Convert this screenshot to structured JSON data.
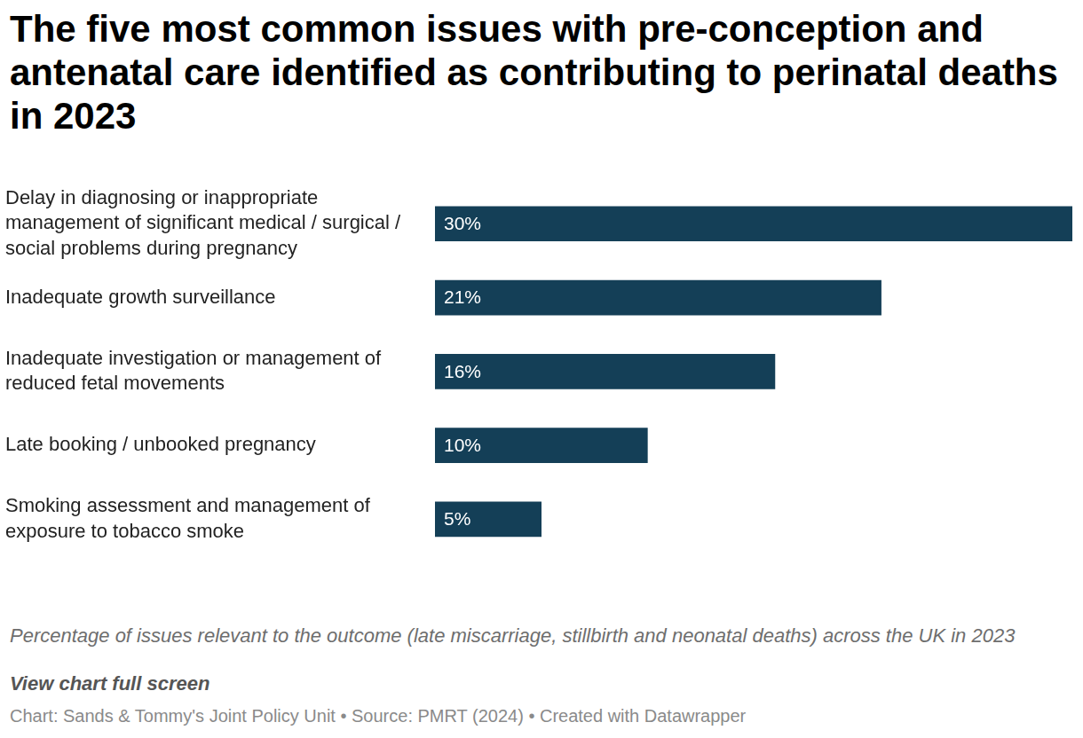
{
  "chart_data": {
    "type": "bar",
    "orientation": "horizontal",
    "title": "The five most common issues with pre-conception and antenatal care identified as contributing to perinatal deaths in 2023",
    "categories": [
      "Delay in diagnosing or inappropriate management of significant medical / surgical / social problems during pregnancy",
      "Inadequate growth surveillance",
      "Inadequate investigation or management of reduced fetal movements",
      "Late booking / unbooked pregnancy",
      "Smoking assessment and management of exposure to tobacco smoke"
    ],
    "values": [
      30,
      21,
      16,
      10,
      5
    ],
    "value_labels": [
      "30%",
      "21%",
      "16%",
      "10%",
      "5%"
    ],
    "color": "#143f57",
    "xlim": [
      0,
      30
    ],
    "grid": false,
    "tick_labels": "y",
    "data_labels": true,
    "caption": "Percentage of issues relevant to the outcome (late miscarriage, stillbirth and neonatal deaths) across the UK in 2023",
    "link": "View chart full screen",
    "source": "Chart: Sands & Tommy's Joint Policy Unit • Source: PMRT (2024) • Created with Datawrapper"
  }
}
